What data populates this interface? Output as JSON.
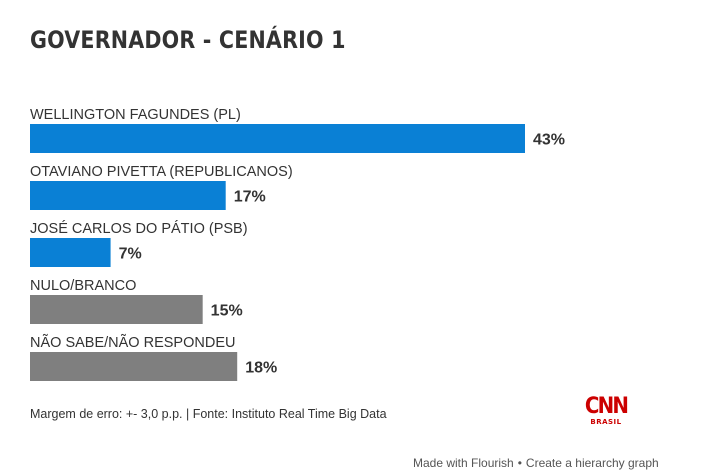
{
  "title": "GOVERNADOR - CENÁRIO 1",
  "chart_data": {
    "type": "bar",
    "orientation": "horizontal",
    "categories": [
      "WELLINGTON FAGUNDES (PL)",
      "OTAVIANO PIVETTA (REPUBLICANOS)",
      "JOSÉ CARLOS DO PÁTIO (PSB)",
      "NULO/BRANCO",
      "NÃO SABE/NÃO RESPONDEU"
    ],
    "values": [
      43,
      17,
      7,
      15,
      18
    ],
    "value_labels": [
      "43%",
      "17%",
      "7%",
      "15%",
      "18%"
    ],
    "colors": [
      "#0A80D5",
      "#0A80D5",
      "#0A80D5",
      "#7F7F7F",
      "#7F7F7F"
    ],
    "xlim": [
      0,
      43
    ],
    "grid": false
  },
  "footer": {
    "note": "Margem de erro: +- 3,0 p.p. | Fonte: Instituto Real Time Big Data"
  },
  "logo": {
    "brand": "CNN",
    "sub": "BRASIL",
    "color": "#CC0000"
  },
  "attribution": {
    "made_with": "Made with Flourish",
    "separator": "•",
    "create": "Create a hierarchy graph"
  }
}
